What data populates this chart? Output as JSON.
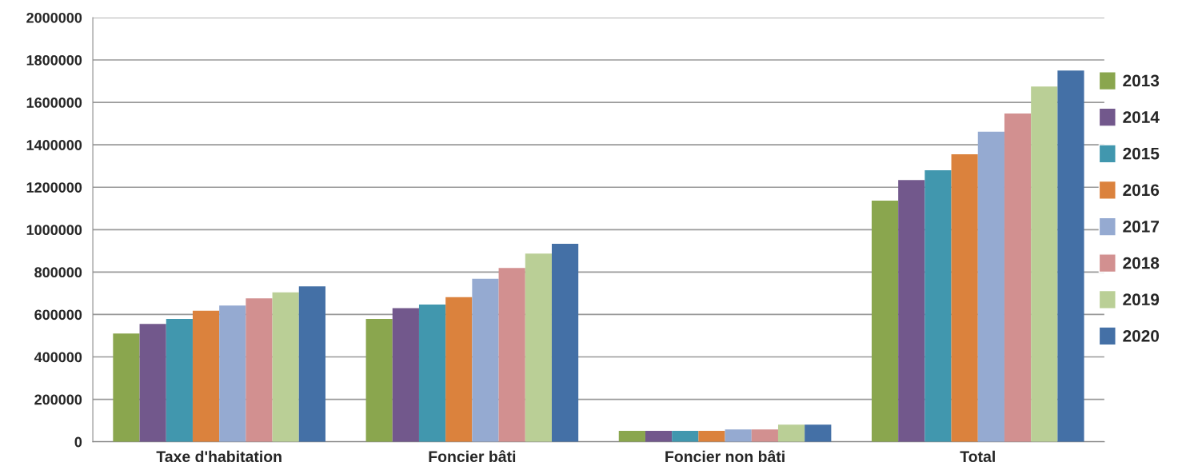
{
  "chart_data": {
    "type": "bar",
    "categories": [
      "Taxe d'habitation",
      "Foncier bâti",
      "Foncier non bâti",
      "Total"
    ],
    "series": [
      {
        "name": "2013",
        "color": "#8aa64e",
        "values": [
          510000,
          579000,
          52000,
          1137000
        ]
      },
      {
        "name": "2014",
        "color": "#72588c",
        "values": [
          556000,
          630000,
          52000,
          1234000
        ]
      },
      {
        "name": "2015",
        "color": "#4197ae",
        "values": [
          579000,
          647000,
          52000,
          1280000
        ]
      },
      {
        "name": "2016",
        "color": "#db823d",
        "values": [
          618000,
          682000,
          52000,
          1355000
        ]
      },
      {
        "name": "2017",
        "color": "#95aad1",
        "values": [
          642000,
          768000,
          58000,
          1462000
        ]
      },
      {
        "name": "2018",
        "color": "#d29090",
        "values": [
          676000,
          819000,
          58000,
          1548000
        ]
      },
      {
        "name": "2019",
        "color": "#bacf96",
        "values": [
          704000,
          887000,
          81000,
          1675000
        ]
      },
      {
        "name": "2020",
        "color": "#4470a6",
        "values": [
          733000,
          933000,
          81000,
          1750000
        ]
      }
    ],
    "ylim": [
      0,
      2000000
    ],
    "yticks": [
      0,
      200000,
      400000,
      600000,
      800000,
      1000000,
      1200000,
      1400000,
      1600000,
      1800000,
      2000000
    ],
    "grid": "y",
    "legend": "right"
  }
}
